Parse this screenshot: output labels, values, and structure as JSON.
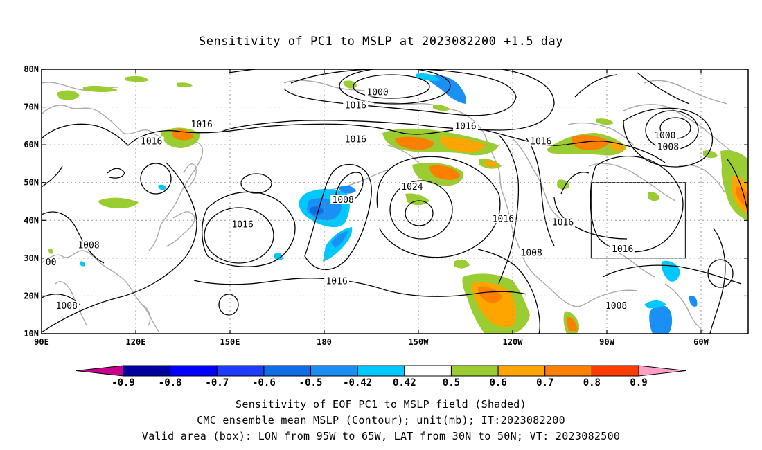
{
  "title": "Sensitivity of PC1 to MSLP at 2023082200 +1.5 day",
  "lat_labels": [
    "80N",
    "70N",
    "60N",
    "50N",
    "40N",
    "30N",
    "20N",
    "10N"
  ],
  "lon_labels": [
    "90E",
    "120E",
    "150E",
    "180",
    "150W",
    "120W",
    "90W",
    "60W"
  ],
  "contour_labels": [
    {
      "text": "1000",
      "lon": -163,
      "lat": 73.5
    },
    {
      "text": "1016",
      "lon": -170,
      "lat": 70
    },
    {
      "text": "1016",
      "lon": -135,
      "lat": 64.5
    },
    {
      "text": "1016",
      "lon": 141,
      "lat": 65
    },
    {
      "text": "1016",
      "lon": 125,
      "lat": 60.5
    },
    {
      "text": "1016",
      "lon": -170,
      "lat": 61
    },
    {
      "text": "1016",
      "lon": -111,
      "lat": 60.5
    },
    {
      "text": "1000",
      "lon": -71.5,
      "lat": 62
    },
    {
      "text": "1008",
      "lon": -70.5,
      "lat": 59
    },
    {
      "text": "1024",
      "lon": -152,
      "lat": 48.5
    },
    {
      "text": "1008",
      "lon": -174,
      "lat": 45
    },
    {
      "text": "1016",
      "lon": 154,
      "lat": 38.5
    },
    {
      "text": "1016",
      "lon": -123,
      "lat": 40
    },
    {
      "text": "1016",
      "lon": -104,
      "lat": 39
    },
    {
      "text": "1016",
      "lon": -85,
      "lat": 32
    },
    {
      "text": "1008",
      "lon": 105,
      "lat": 33
    },
    {
      "text": "1008",
      "lon": -114,
      "lat": 31
    },
    {
      "text": "1016",
      "lon": -176,
      "lat": 23.5
    },
    {
      "text": "1008",
      "lon": 98,
      "lat": 17
    },
    {
      "text": "1008",
      "lon": -87,
      "lat": 17
    },
    {
      "text": "00",
      "lon": 93,
      "lat": 28.5
    }
  ],
  "valid_box": {
    "lon_west": -95,
    "lon_east": -65,
    "lat_south": 30,
    "lat_north": 50
  },
  "colorbar": {
    "labels": [
      "-0.9",
      "-0.8",
      "-0.7",
      "-0.6",
      "-0.5",
      "-0.42",
      "0.42",
      "0.5",
      "0.6",
      "0.7",
      "0.8",
      "0.9"
    ],
    "colors": [
      "#0000a0",
      "#0000ff",
      "#1e3cff",
      "#0f6ee6",
      "#1a90f5",
      "#00c8ff",
      "#ffffff",
      "#9acd32",
      "#ffa500",
      "#ff7f00",
      "#ff3c00",
      "#ff0000"
    ],
    "under_color": "#c8008c",
    "over_color": "#ffa0c8"
  },
  "captions": [
    "Sensitivity of EOF PC1 to MSLP field (Shaded)",
    "CMC ensemble mean MSLP (Contour); unit(mb); IT:2023082200",
    "Valid area (box): LON from 95W to 65W, LAT from 30N to 50N; VT: 2023082500"
  ],
  "shading_colors": {
    "blue": "#1a90f5",
    "light_blue": "#00c8ff",
    "green": "#9acd32",
    "orange": "#ffa500",
    "dark_orange": "#ff7f00",
    "coast": "#aaaaaa"
  }
}
